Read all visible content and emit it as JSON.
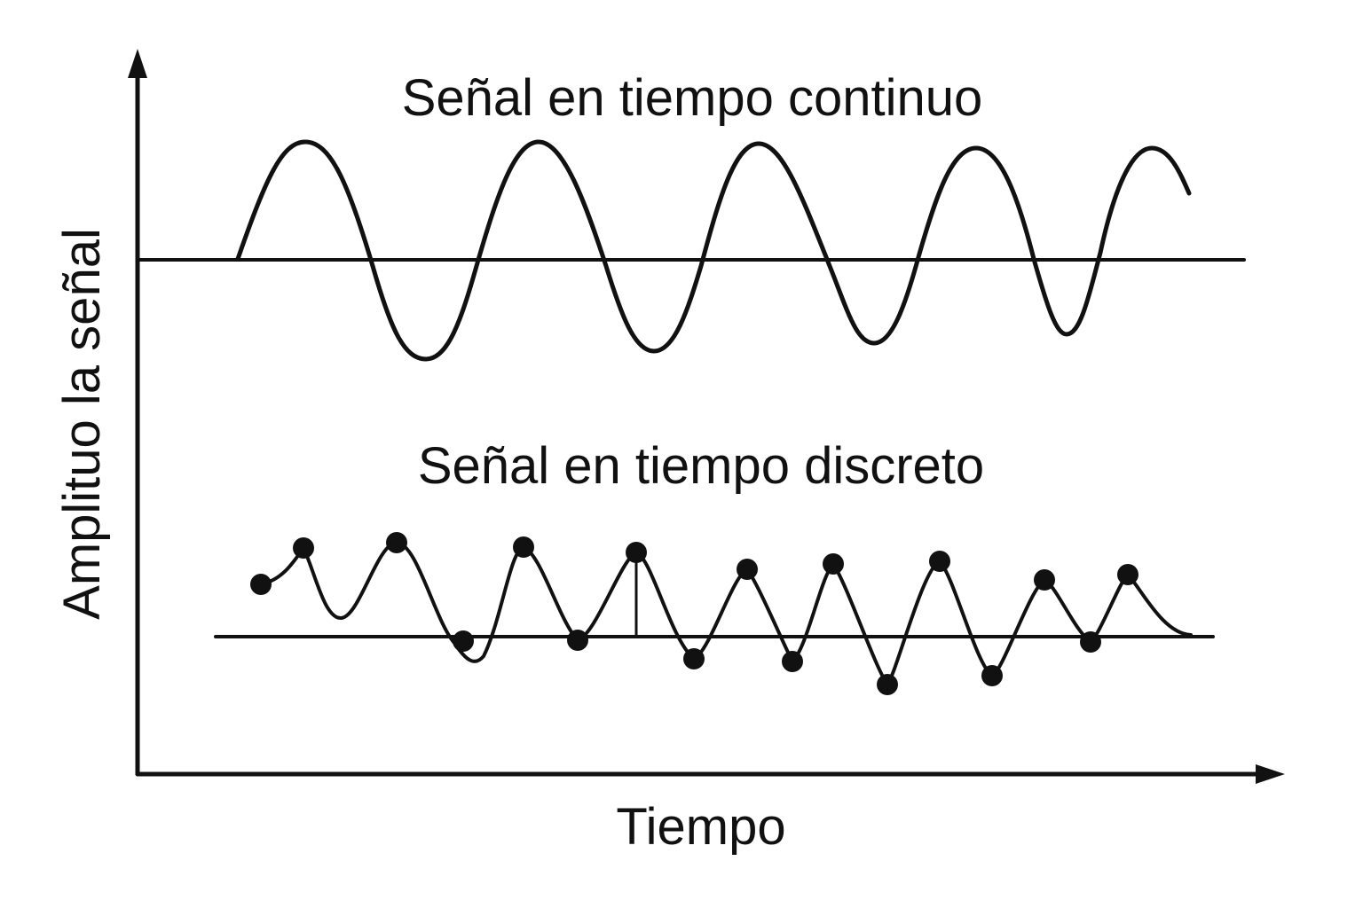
{
  "diagram": {
    "continuous_title": "Señal en tiempo continuo",
    "discrete_title": "Señal en tiempo discreto",
    "x_axis_label": "Tiempo",
    "y_axis_label": "Amplituo la señal",
    "ink_color": "#111111",
    "background": "#ffffff"
  }
}
